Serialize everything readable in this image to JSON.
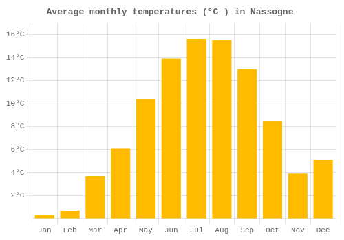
{
  "chart_data": {
    "type": "bar",
    "title": "Average monthly temperatures (°C ) in Nassogne",
    "categories": [
      "Jan",
      "Feb",
      "Mar",
      "Apr",
      "May",
      "Jun",
      "Jul",
      "Aug",
      "Sep",
      "Oct",
      "Nov",
      "Dec"
    ],
    "values": [
      0.3,
      0.7,
      3.7,
      6.1,
      10.4,
      13.9,
      15.6,
      15.5,
      13.0,
      8.5,
      3.9,
      5.1
    ],
    "color": "#FFBB00",
    "ylim": [
      0,
      17.0
    ],
    "yticks": [
      {
        "value": 2,
        "label": "2°C"
      },
      {
        "value": 4,
        "label": "4°C"
      },
      {
        "value": 6,
        "label": "6°C"
      },
      {
        "value": 8,
        "label": "8°C"
      },
      {
        "value": 10,
        "label": "10°C"
      },
      {
        "value": 12,
        "label": "12°C"
      },
      {
        "value": 14,
        "label": "14°C"
      },
      {
        "value": 16,
        "label": "16°C"
      }
    ],
    "grid": true
  }
}
